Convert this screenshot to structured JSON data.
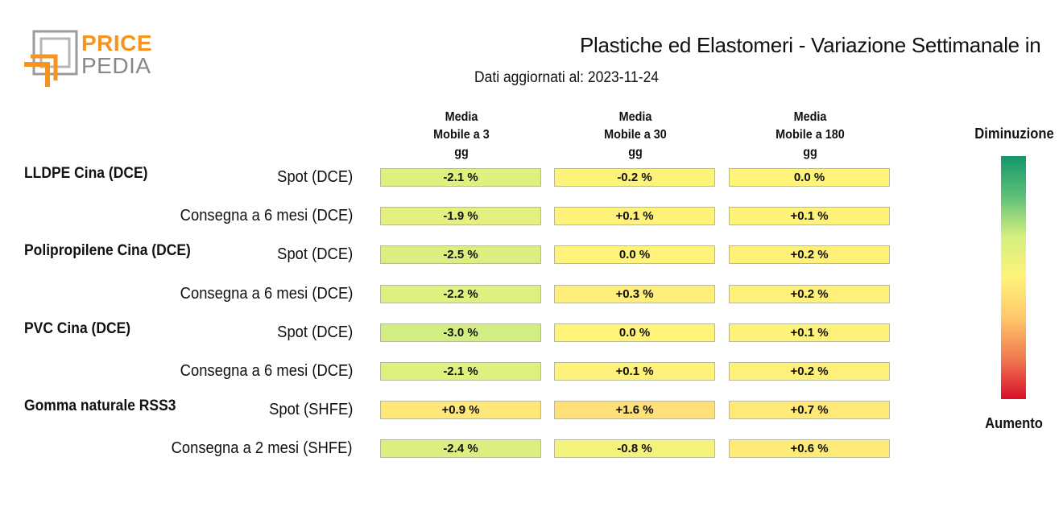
{
  "logo": {
    "line1": "PRICE",
    "line2": "PEDIA"
  },
  "title": "Plastiche ed Elastomeri - Variazione Settimanale in",
  "subtitle": "Dati aggiornati al: 2023-11-24",
  "legend": {
    "top_label": "Diminuzione",
    "bottom_label": "Aumento",
    "colors": [
      "#12966a",
      "#5fc079",
      "#d6f07e",
      "#fff27a",
      "#ffc76a",
      "#f07a50",
      "#d9102a"
    ]
  },
  "chart_data": {
    "type": "table",
    "title": "Plastiche ed Elastomeri - Variazione Settimanale in",
    "columns": [
      "Media\nMobile a 3\ngg",
      "Media\nMobile a 30\ngg",
      "Media\nMobile a 180\ngg"
    ],
    "unit": "%",
    "groups": [
      {
        "name": "LLDPE Cina (DCE)",
        "rows": [
          {
            "label": "Spot (DCE)",
            "values": [
              "-2.1 %",
              "-0.2 %",
              "0.0 %"
            ]
          },
          {
            "label": "Consegna a 6 mesi (DCE)",
            "values": [
              "-1.9 %",
              "+0.1 %",
              "+0.1 %"
            ]
          }
        ]
      },
      {
        "name": "Polipropilene Cina (DCE)",
        "rows": [
          {
            "label": "Spot (DCE)",
            "values": [
              "-2.5 %",
              "0.0 %",
              "+0.2 %"
            ]
          },
          {
            "label": "Consegna a 6 mesi (DCE)",
            "values": [
              "-2.2 %",
              "+0.3 %",
              "+0.2 %"
            ]
          }
        ]
      },
      {
        "name": "PVC Cina (DCE)",
        "rows": [
          {
            "label": "Spot (DCE)",
            "values": [
              "-3.0 %",
              "0.0 %",
              "+0.1 %"
            ]
          },
          {
            "label": "Consegna a 6 mesi (DCE)",
            "values": [
              "-2.1 %",
              "+0.1 %",
              "+0.2 %"
            ]
          }
        ]
      },
      {
        "name": "Gomma naturale RSS3",
        "rows": [
          {
            "label": "Spot (SHFE)",
            "values": [
              "+0.9 %",
              "+1.6 %",
              "+0.7 %"
            ]
          },
          {
            "label": "Consegna a 2 mesi (SHFE)",
            "values": [
              "-2.4 %",
              "-0.8 %",
              "+0.6 %"
            ]
          }
        ]
      }
    ]
  }
}
